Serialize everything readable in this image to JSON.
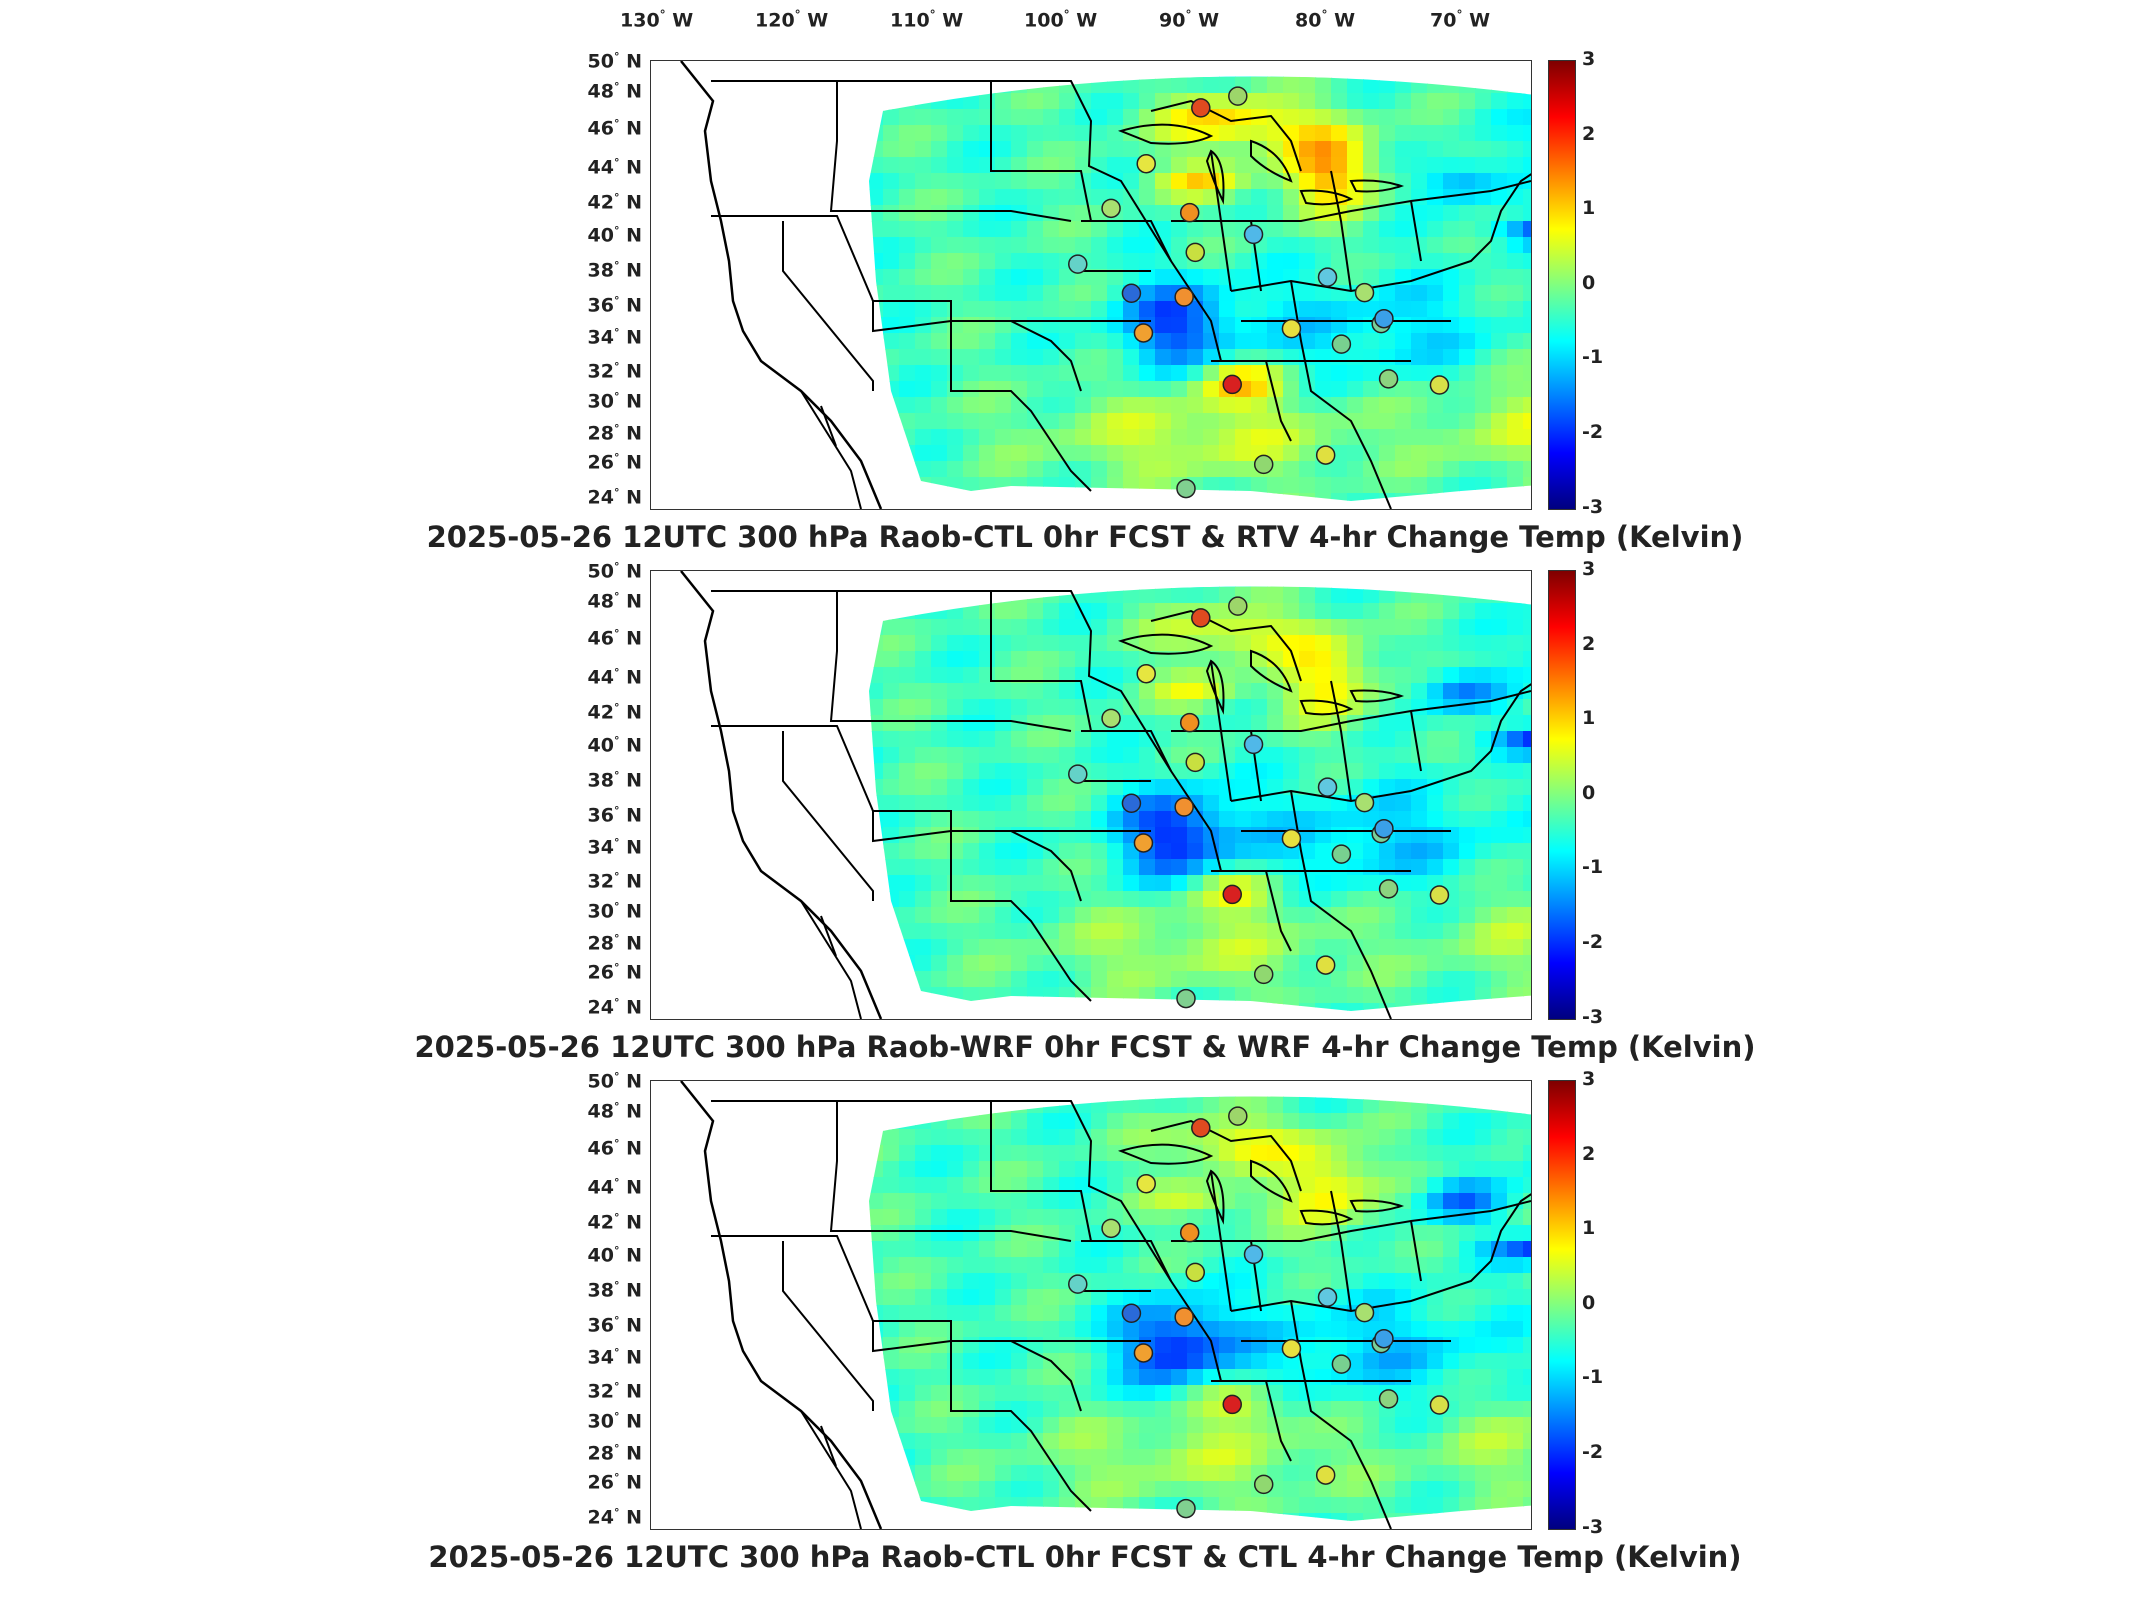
{
  "lon_labels": [
    "130",
    "120",
    "110",
    "100",
    "90",
    "80",
    "70"
  ],
  "lon_suffix": "W",
  "lat_labels": [
    "50",
    "48",
    "46",
    "44",
    "42",
    "40",
    "38",
    "36",
    "34",
    "32",
    "30",
    "28",
    "26",
    "24"
  ],
  "lat_suffix": "N",
  "colorbar": {
    "ticks": [
      "3",
      "2",
      "1",
      "0",
      "-1",
      "-2",
      "-3"
    ],
    "colormap": "jet",
    "range": [
      -3,
      3
    ]
  },
  "panels": [
    {
      "title": "2025-05-26 12UTC 300 hPa Raob-CTL 0hr FCST & RTV 4-hr Change Temp (Kelvin)",
      "variant": 0
    },
    {
      "title": "2025-05-26 12UTC 300 hPa Raob-WRF 0hr FCST & WRF 4-hr Change Temp (Kelvin)",
      "variant": 1
    },
    {
      "title": "2025-05-26 12UTC 300 hPa Raob-CTL 0hr FCST & CTL 4-hr Change Temp (Kelvin)",
      "variant": 2
    }
  ],
  "stations": [
    {
      "color": "#9dd66a"
    },
    {
      "color": "#e6e640"
    },
    {
      "color": "#f09020"
    },
    {
      "color": "#64d2c8"
    },
    {
      "color": "#a8e070"
    },
    {
      "color": "#e04a20"
    },
    {
      "color": "#2a6ad8"
    },
    {
      "color": "#f0a030"
    },
    {
      "color": "#f09030"
    },
    {
      "color": "#c8e040"
    },
    {
      "color": "#d82020"
    },
    {
      "color": "#50b8e8"
    },
    {
      "color": "#60c8e0"
    },
    {
      "color": "#e8e040"
    },
    {
      "color": "#78d090"
    },
    {
      "color": "#7ad098"
    },
    {
      "color": "#a8e070"
    },
    {
      "color": "#3aa0e8"
    },
    {
      "color": "#d8e048"
    },
    {
      "color": "#8cd480"
    },
    {
      "color": "#e0e040"
    },
    {
      "color": "#90d870"
    },
    {
      "color": "#80d090"
    }
  ]
}
